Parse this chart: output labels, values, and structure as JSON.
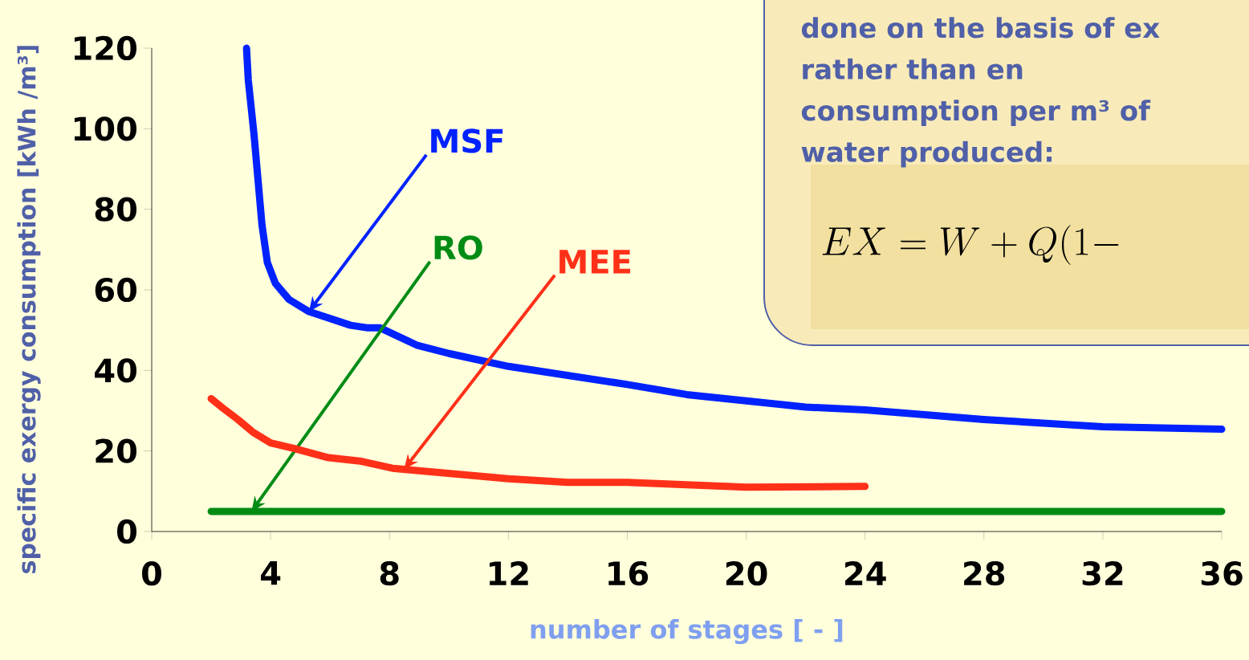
{
  "chart_data": {
    "type": "line",
    "xlabel": "number of stages [ - ]",
    "ylabel": "specific exergy consumption [kWh /m³]",
    "xlim": [
      0,
      36
    ],
    "xticks": [
      0,
      4,
      8,
      12,
      16,
      20,
      24,
      28,
      32,
      36
    ],
    "ylim": [
      0,
      120
    ],
    "yticks": [
      0,
      20,
      40,
      60,
      80,
      100,
      120
    ],
    "grid": false,
    "legend": false,
    "series": [
      {
        "name": "MSF",
        "color": "#0022ff",
        "x": [
          3.19,
          3.25,
          3.44,
          3.71,
          3.89,
          4.16,
          4.62,
          5.29,
          6.69,
          7.23,
          7.67,
          8.94,
          10,
          12,
          16,
          18,
          22,
          24,
          28,
          32,
          36
        ],
        "values": [
          120,
          112,
          98.7,
          76.1,
          66.8,
          61.6,
          57.6,
          54.6,
          51.2,
          50.6,
          50.6,
          46.2,
          44.2,
          41,
          36.5,
          34,
          30.9,
          30.2,
          27.8,
          26,
          25.4
        ]
      },
      {
        "name": "RO",
        "color": "#008c14",
        "x": [
          2,
          36
        ],
        "values": [
          5,
          5
        ]
      },
      {
        "name": "MEE",
        "color": "#ff3018",
        "x": [
          2,
          2.4,
          2.9,
          3.4,
          4,
          4.8,
          5.9,
          7,
          8.1,
          12,
          14,
          16,
          20,
          24
        ],
        "values": [
          33,
          30.6,
          27.8,
          24.7,
          22,
          20.6,
          18.4,
          17.5,
          15.7,
          13.1,
          12.2,
          12.2,
          11,
          11.2
        ]
      }
    ],
    "annotations": [
      "done on the basis of ex",
      "rather than en",
      "consumption per m³ of",
      "water produced:",
      "EX = W + Q\\Bigl( 1 -"
    ]
  }
}
